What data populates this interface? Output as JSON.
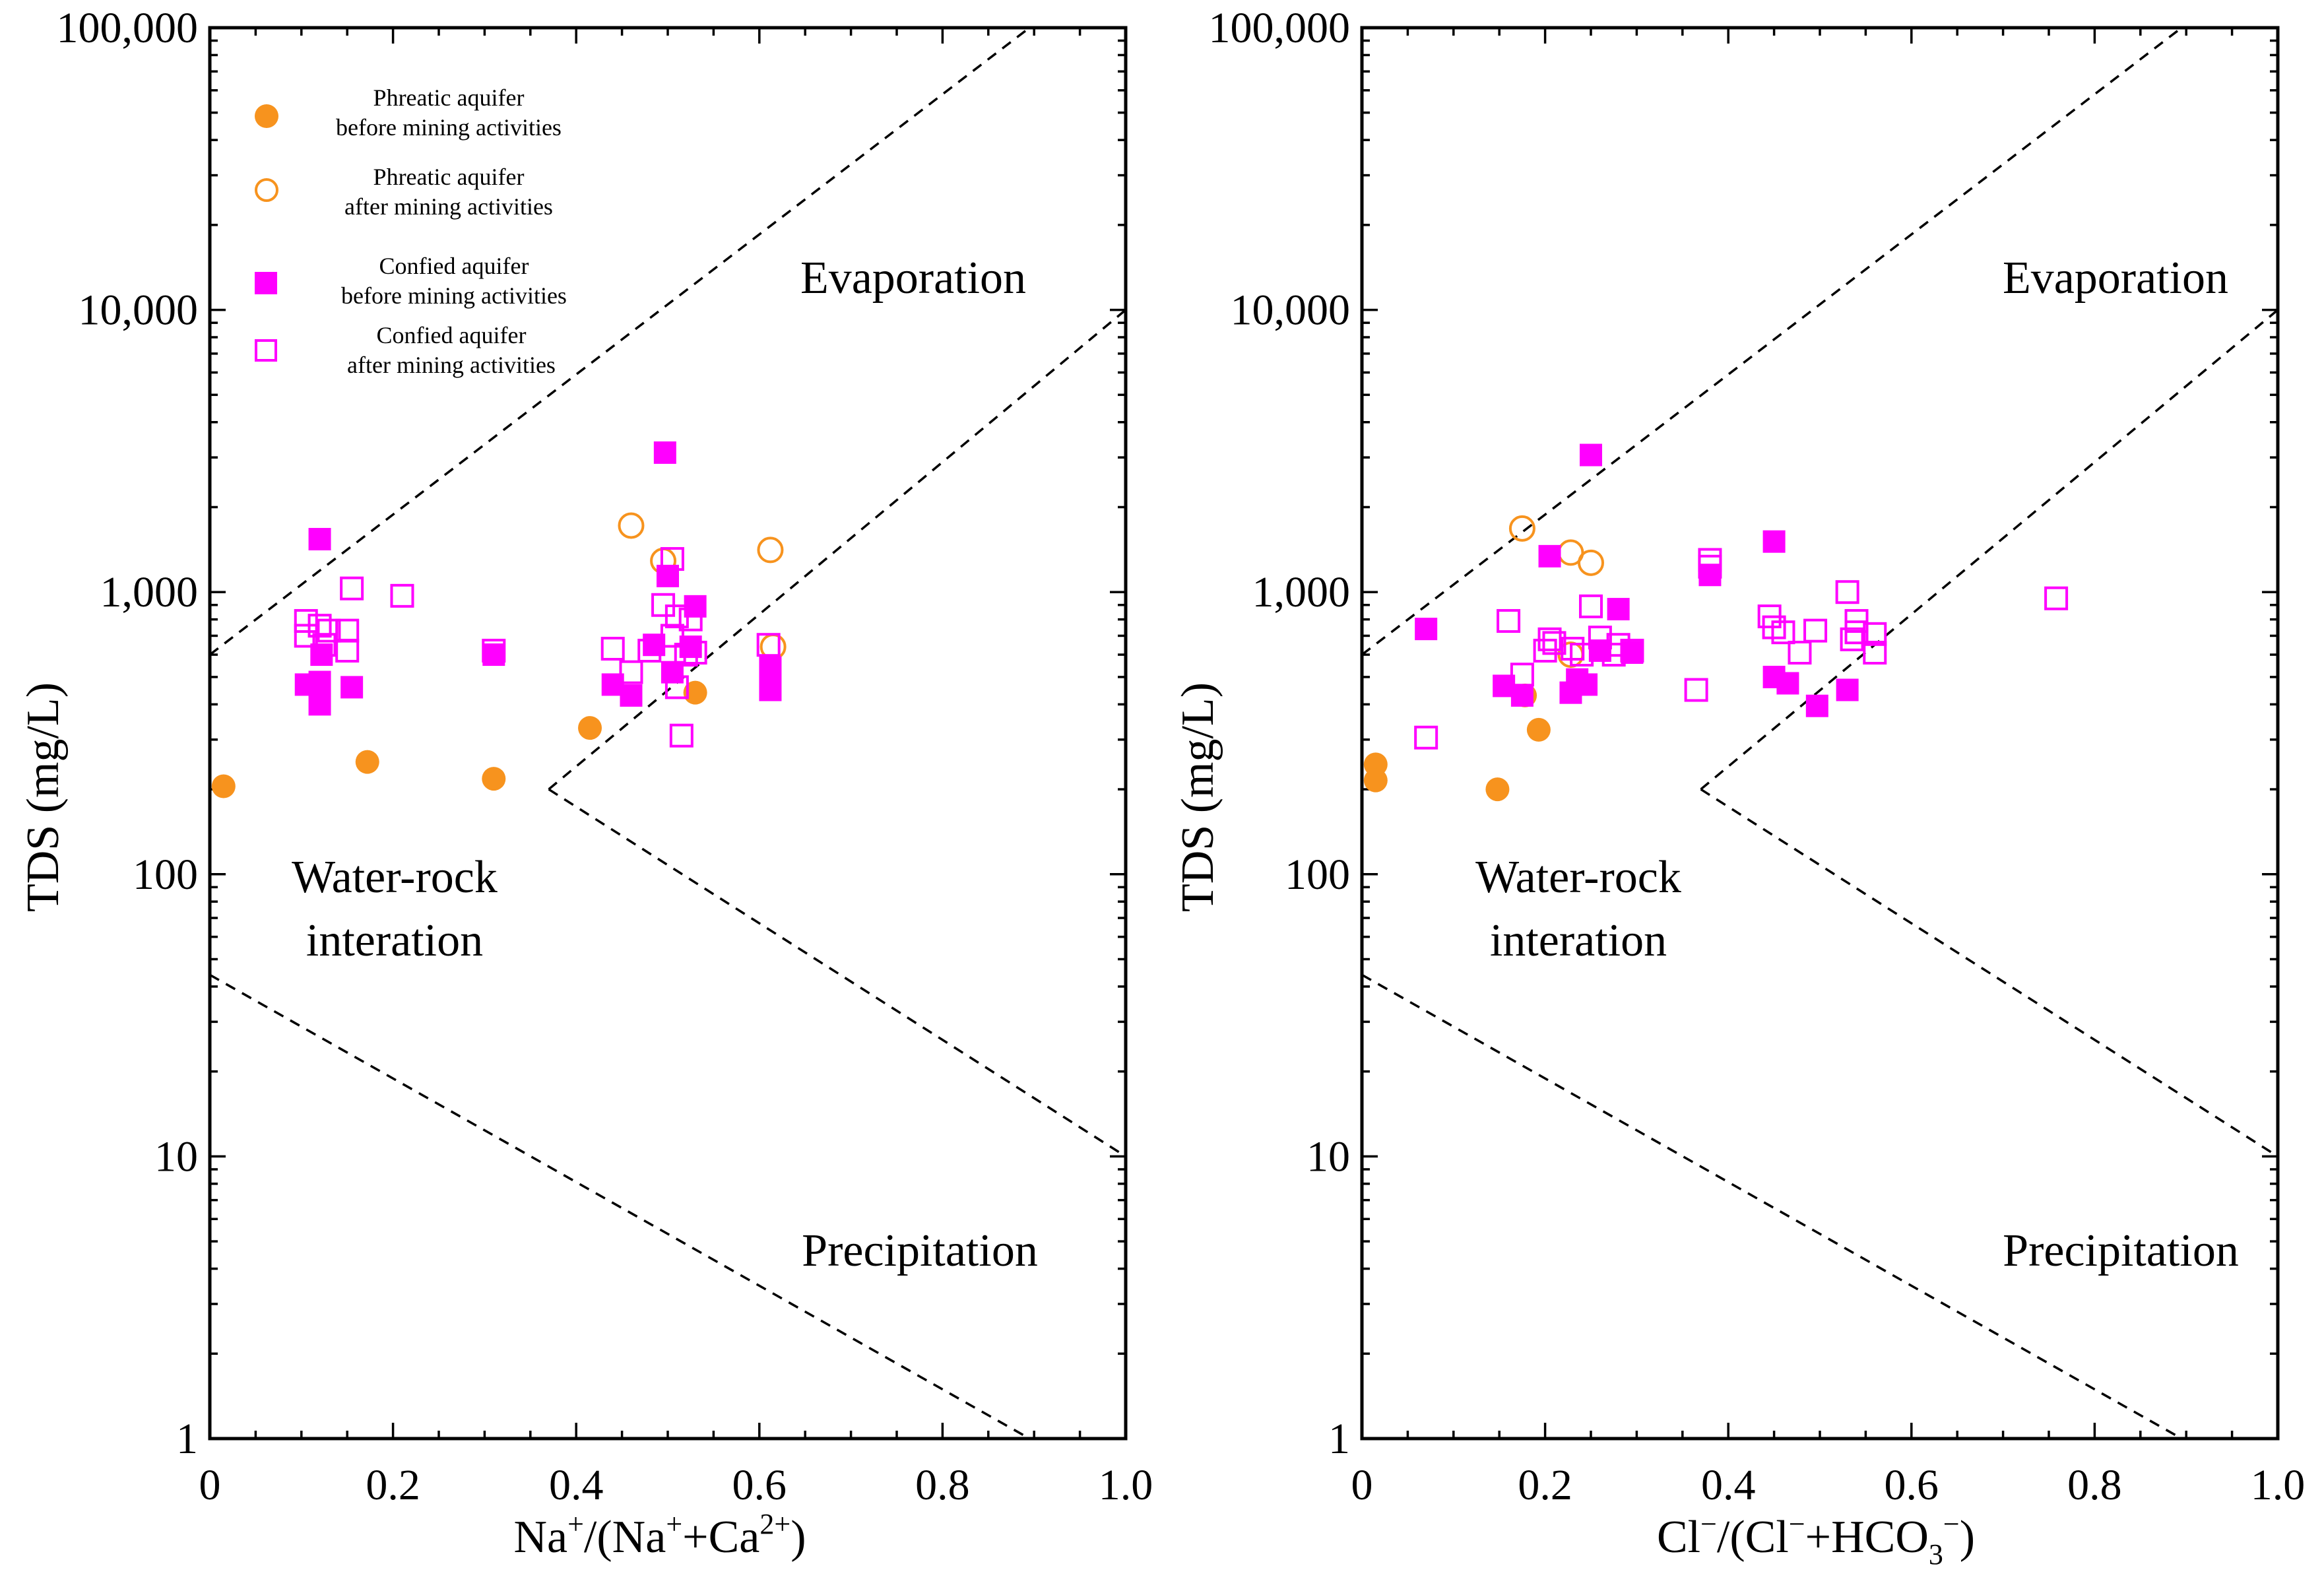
{
  "colors": {
    "phreatic": "#F7931E",
    "confined": "#FF00FF",
    "axis": "#000000",
    "background": "#FFFFFF"
  },
  "chart_data": [
    {
      "type": "scatter",
      "x_scale": "linear",
      "y_scale": "log",
      "xlim": [
        0,
        1.0
      ],
      "ylim": [
        1,
        100000
      ],
      "xlabel_main": "Na",
      "xlabel_parts": [
        "Na",
        "+",
        "/(Na",
        "+",
        "+Ca",
        "2+",
        ")"
      ],
      "ylabel": "TDS (mg/L)",
      "x_ticks": [
        0,
        0.2,
        0.4,
        0.6,
        0.8,
        1.0
      ],
      "x_tick_labels": [
        "0",
        "0.2",
        "0.4",
        "0.6",
        "0.8",
        "1.0"
      ],
      "y_ticks": [
        1,
        10,
        100,
        1000,
        10000,
        100000
      ],
      "y_tick_labels": [
        "1",
        "10",
        "100",
        "1,000",
        "10,000",
        "100,000"
      ],
      "region_labels": {
        "evaporation": "Evaporation",
        "water_rock_1": "Water-rock",
        "water_rock_2": "interation",
        "precipitation": "Precipitation"
      },
      "boundary_lines": [
        {
          "x": [
            0,
            0.895
          ],
          "y": [
            600,
            100000
          ]
        },
        {
          "x": [
            0.37,
            1.0
          ],
          "y": [
            200,
            10000
          ]
        },
        {
          "x": [
            0.37,
            1.0
          ],
          "y": [
            200,
            10
          ]
        },
        {
          "x": [
            0,
            0.895
          ],
          "y": [
            44,
            1
          ]
        }
      ],
      "legend": [
        {
          "line1": "Phreatic aquifer",
          "line2": "before mining activities",
          "marker": "circle",
          "fill": true,
          "color": "phreatic"
        },
        {
          "line1": "Phreatic aquifer",
          "line2": "after mining activities",
          "marker": "circle",
          "fill": false,
          "color": "phreatic"
        },
        {
          "line1": "Confied aquifer",
          "line2": "before mining activities",
          "marker": "square",
          "fill": true,
          "color": "confined"
        },
        {
          "line1": "Confied aquifer",
          "line2": "after mining activities",
          "marker": "square",
          "fill": false,
          "color": "confined"
        }
      ],
      "series": [
        {
          "name": "Phreatic aquifer before mining activities",
          "marker": "circle",
          "fill": true,
          "color": "phreatic",
          "points": [
            [
              0.015,
              205
            ],
            [
              0.172,
              250
            ],
            [
              0.31,
              218
            ],
            [
              0.415,
              330
            ],
            [
              0.53,
              440
            ]
          ]
        },
        {
          "name": "Phreatic aquifer after mining activities",
          "marker": "circle",
          "fill": false,
          "color": "phreatic",
          "points": [
            [
              0.46,
              1720
            ],
            [
              0.495,
              1290
            ],
            [
              0.612,
              1410
            ],
            [
              0.615,
              640
            ]
          ]
        },
        {
          "name": "Confied aquifer before mining activities",
          "marker": "square",
          "fill": true,
          "color": "confined",
          "points": [
            [
              0.12,
              1540
            ],
            [
              0.105,
              470
            ],
            [
              0.12,
              480
            ],
            [
              0.12,
              400
            ],
            [
              0.122,
              600
            ],
            [
              0.155,
              460
            ],
            [
              0.31,
              600
            ],
            [
              0.497,
              3120
            ],
            [
              0.5,
              1140
            ],
            [
              0.44,
              470
            ],
            [
              0.46,
              430
            ],
            [
              0.485,
              650
            ],
            [
              0.505,
              520
            ],
            [
              0.525,
              640
            ],
            [
              0.53,
              890
            ],
            [
              0.612,
              540
            ],
            [
              0.612,
              450
            ]
          ]
        },
        {
          "name": "Confied aquifer after mining activities",
          "marker": "square",
          "fill": false,
          "color": "confined",
          "points": [
            [
              0.105,
              790
            ],
            [
              0.105,
              700
            ],
            [
              0.12,
              760
            ],
            [
              0.125,
              650
            ],
            [
              0.13,
              730
            ],
            [
              0.15,
              620
            ],
            [
              0.15,
              730
            ],
            [
              0.155,
              1030
            ],
            [
              0.21,
              970
            ],
            [
              0.31,
              620
            ],
            [
              0.44,
              630
            ],
            [
              0.46,
              520
            ],
            [
              0.48,
              620
            ],
            [
              0.495,
              900
            ],
            [
              0.505,
              1310
            ],
            [
              0.505,
              700
            ],
            [
              0.51,
              820
            ],
            [
              0.51,
              460
            ],
            [
              0.515,
              310
            ],
            [
              0.52,
              600
            ],
            [
              0.525,
              800
            ],
            [
              0.53,
              610
            ],
            [
              0.61,
              650
            ]
          ]
        }
      ]
    },
    {
      "type": "scatter",
      "x_scale": "linear",
      "y_scale": "log",
      "xlim": [
        0,
        1.0
      ],
      "ylim": [
        1,
        100000
      ],
      "xlabel_parts": [
        "Cl",
        "−",
        "/(Cl",
        "−",
        "+HCO",
        "3",
        "−",
        ")"
      ],
      "ylabel": "TDS (mg/L)",
      "x_ticks": [
        0,
        0.2,
        0.4,
        0.6,
        0.8,
        1.0
      ],
      "x_tick_labels": [
        "0",
        "0.2",
        "0.4",
        "0.6",
        "0.8",
        "1.0"
      ],
      "y_ticks": [
        1,
        10,
        100,
        1000,
        10000,
        100000
      ],
      "y_tick_labels": [
        "1",
        "10",
        "100",
        "1,000",
        "10,000",
        "100,000"
      ],
      "region_labels": {
        "evaporation": "Evaporation",
        "water_rock_1": "Water-rock",
        "water_rock_2": "interation",
        "precipitation": "Precipitation"
      },
      "boundary_lines": [
        {
          "x": [
            0,
            0.895
          ],
          "y": [
            600,
            100000
          ]
        },
        {
          "x": [
            0.37,
            1.0
          ],
          "y": [
            200,
            10000
          ]
        },
        {
          "x": [
            0.37,
            1.0
          ],
          "y": [
            200,
            10
          ]
        },
        {
          "x": [
            0,
            0.895
          ],
          "y": [
            44,
            1
          ]
        }
      ],
      "series": [
        {
          "name": "Phreatic aquifer before mining activities",
          "marker": "circle",
          "fill": true,
          "color": "phreatic",
          "points": [
            [
              0.015,
              245
            ],
            [
              0.015,
              215
            ],
            [
              0.148,
              200
            ],
            [
              0.193,
              325
            ],
            [
              0.178,
              430
            ]
          ]
        },
        {
          "name": "Phreatic aquifer after mining activities",
          "marker": "circle",
          "fill": false,
          "color": "phreatic",
          "points": [
            [
              0.175,
              1680
            ],
            [
              0.228,
              1380
            ],
            [
              0.25,
              1270
            ],
            [
              0.228,
              600
            ]
          ]
        },
        {
          "name": "Confied aquifer before mining activities",
          "marker": "square",
          "fill": true,
          "color": "confined",
          "points": [
            [
              0.07,
              740
            ],
            [
              0.155,
              465
            ],
            [
              0.175,
              430
            ],
            [
              0.205,
              1340
            ],
            [
              0.228,
              440
            ],
            [
              0.235,
              490
            ],
            [
              0.245,
              470
            ],
            [
              0.25,
              3060
            ],
            [
              0.26,
              620
            ],
            [
              0.28,
              870
            ],
            [
              0.295,
              610
            ],
            [
              0.38,
              1150
            ],
            [
              0.45,
              1510
            ],
            [
              0.45,
              500
            ],
            [
              0.465,
              475
            ],
            [
              0.497,
              395
            ],
            [
              0.53,
              450
            ]
          ]
        },
        {
          "name": "Confied aquifer after mining activities",
          "marker": "square",
          "fill": false,
          "color": "confined",
          "points": [
            [
              0.07,
              305
            ],
            [
              0.16,
              790
            ],
            [
              0.175,
              510
            ],
            [
              0.2,
              620
            ],
            [
              0.205,
              680
            ],
            [
              0.21,
              660
            ],
            [
              0.23,
              630
            ],
            [
              0.24,
              600
            ],
            [
              0.25,
              890
            ],
            [
              0.26,
              690
            ],
            [
              0.275,
              600
            ],
            [
              0.28,
              650
            ],
            [
              0.295,
              620
            ],
            [
              0.365,
              450
            ],
            [
              0.38,
              1300
            ],
            [
              0.38,
              1230
            ],
            [
              0.445,
              820
            ],
            [
              0.45,
              750
            ],
            [
              0.46,
              720
            ],
            [
              0.478,
              610
            ],
            [
              0.495,
              730
            ],
            [
              0.53,
              1000
            ],
            [
              0.535,
              680
            ],
            [
              0.54,
              790
            ],
            [
              0.54,
              720
            ],
            [
              0.56,
              710
            ],
            [
              0.56,
              610
            ],
            [
              0.758,
              950
            ]
          ]
        }
      ]
    }
  ]
}
